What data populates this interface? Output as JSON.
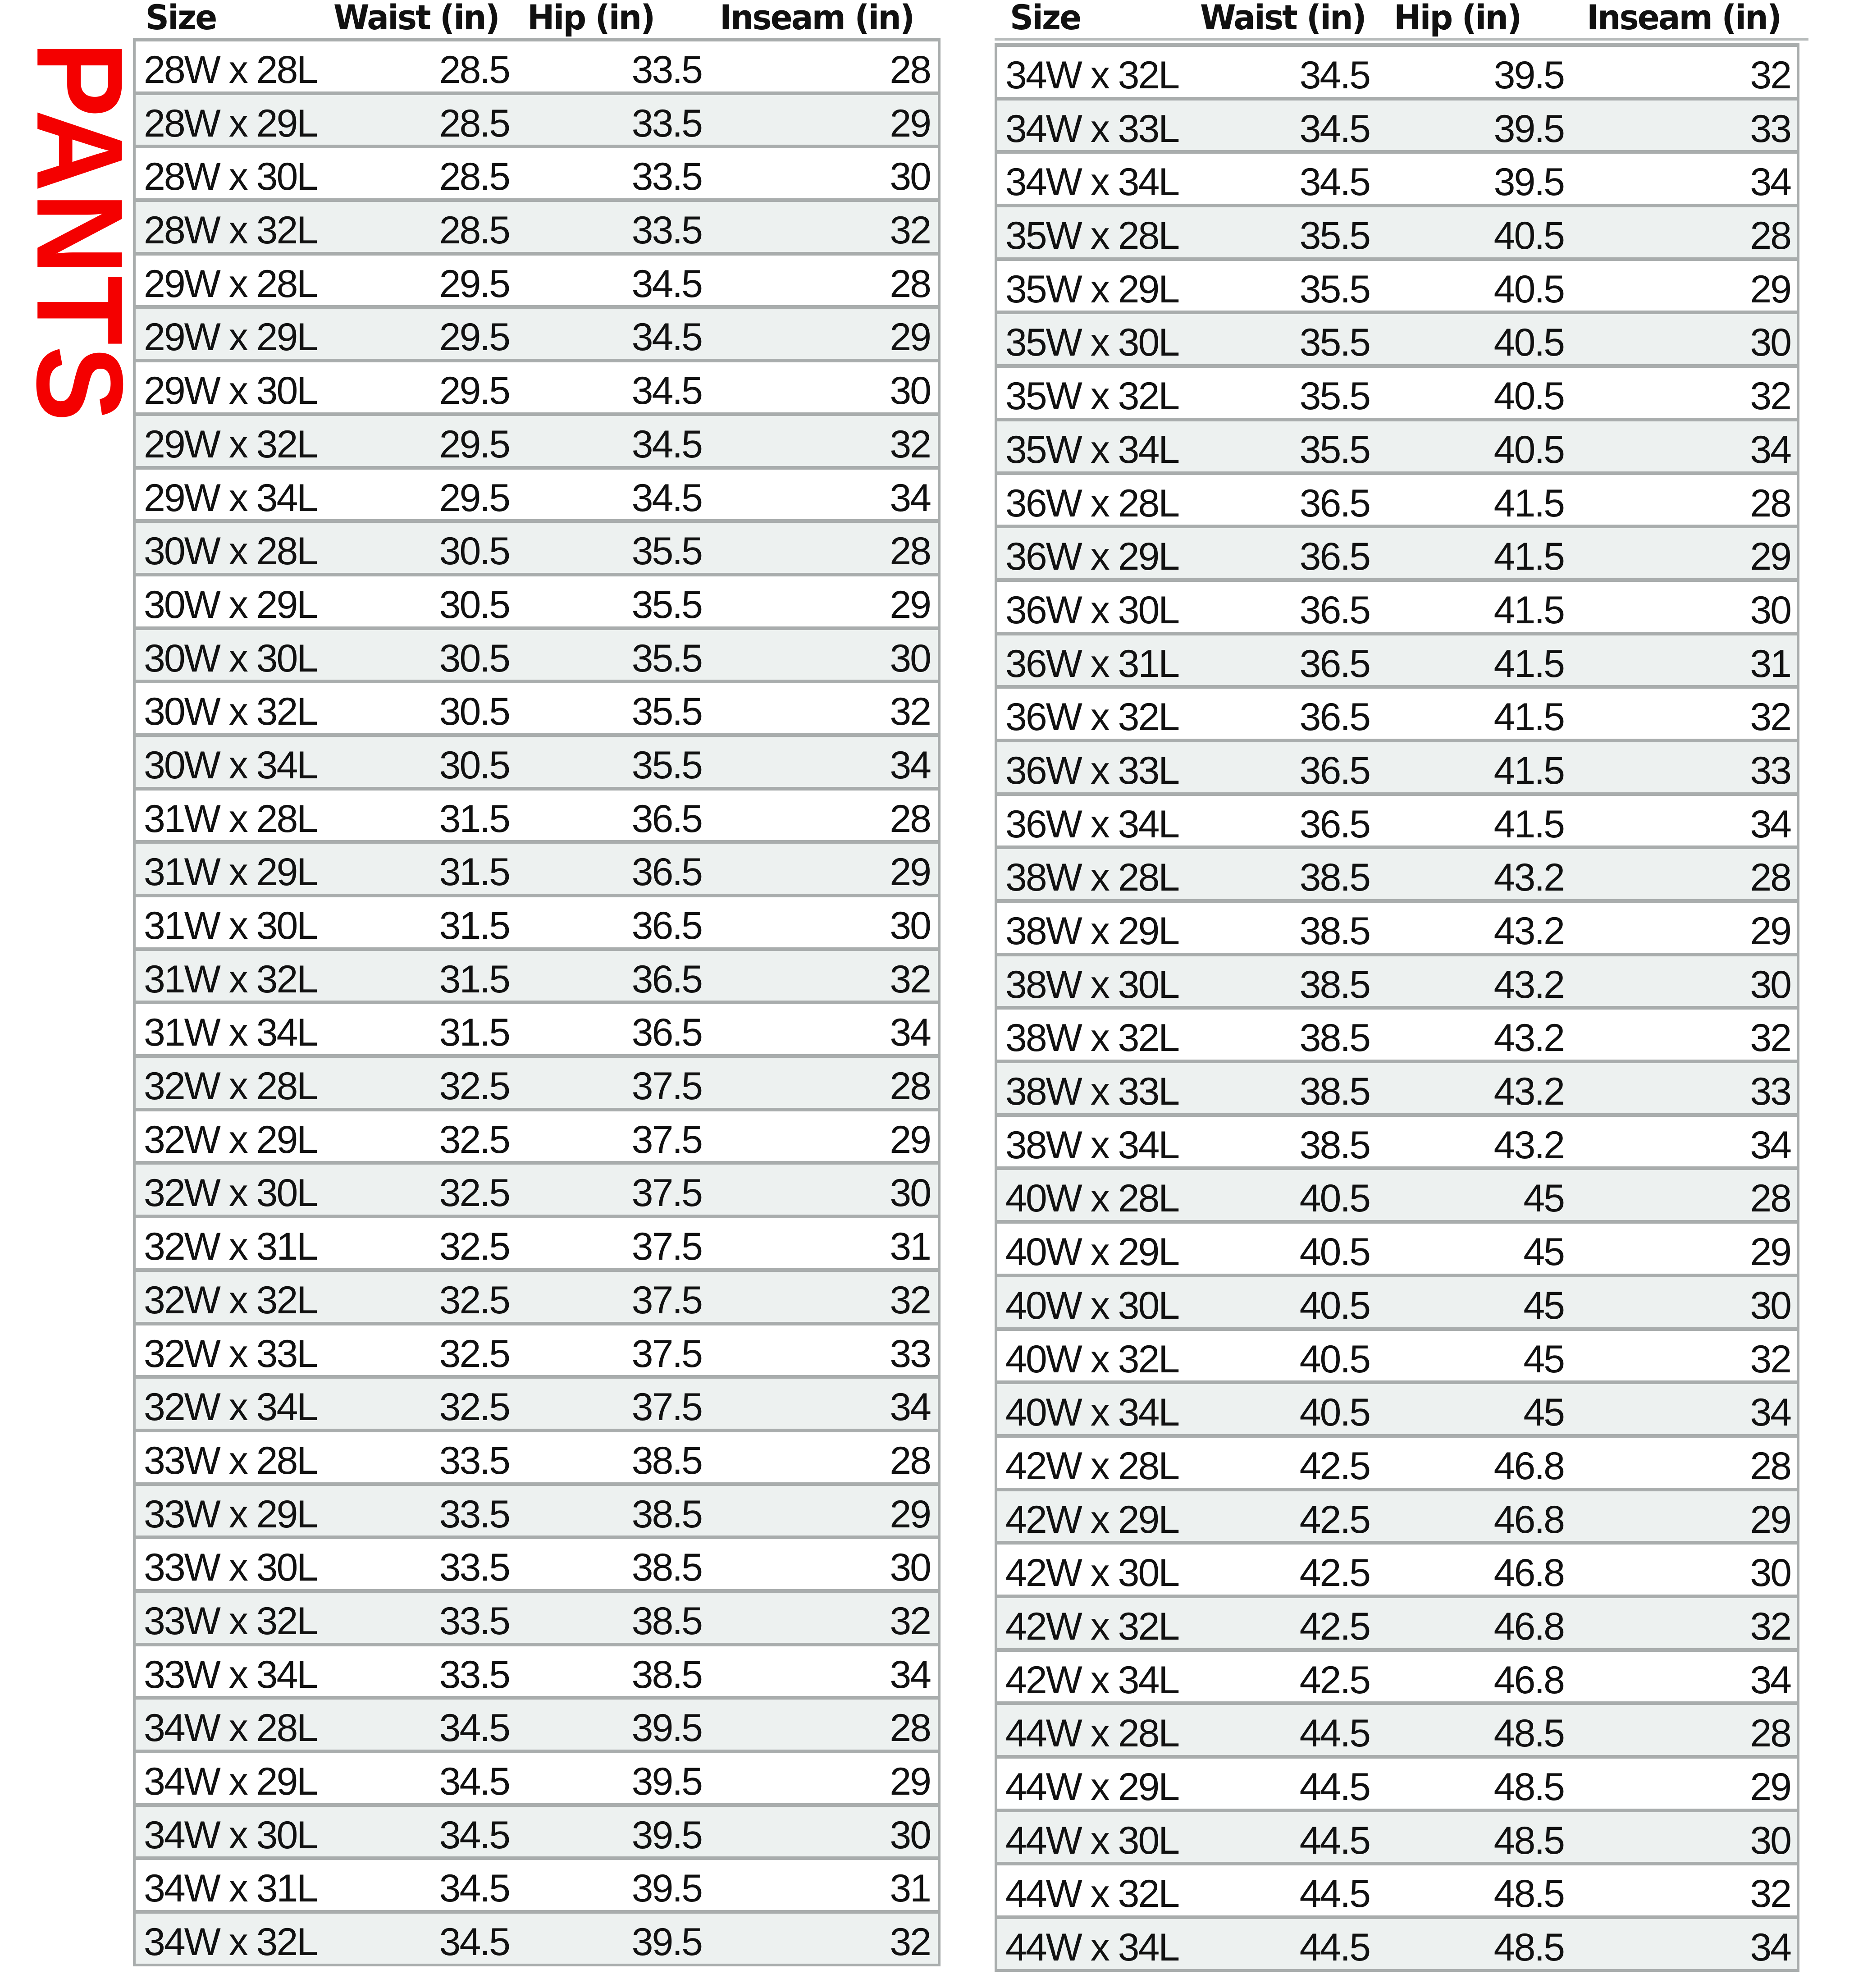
{
  "title": "PANTS",
  "colors": {
    "title": "#f40000",
    "row_alt": "#edf1f0",
    "border": "#a9adad"
  },
  "columns": [
    "Size",
    "Waist (in)",
    "Hip (in)",
    "Inseam (in)"
  ],
  "tables": [
    {
      "rows": [
        [
          "28W x 28L",
          "28.5",
          "33.5",
          "28"
        ],
        [
          "28W x 29L",
          "28.5",
          "33.5",
          "29"
        ],
        [
          "28W x 30L",
          "28.5",
          "33.5",
          "30"
        ],
        [
          "28W x 32L",
          "28.5",
          "33.5",
          "32"
        ],
        [
          "29W x 28L",
          "29.5",
          "34.5",
          "28"
        ],
        [
          "29W x 29L",
          "29.5",
          "34.5",
          "29"
        ],
        [
          "29W x 30L",
          "29.5",
          "34.5",
          "30"
        ],
        [
          "29W x 32L",
          "29.5",
          "34.5",
          "32"
        ],
        [
          "29W x 34L",
          "29.5",
          "34.5",
          "34"
        ],
        [
          "30W x 28L",
          "30.5",
          "35.5",
          "28"
        ],
        [
          "30W x 29L",
          "30.5",
          "35.5",
          "29"
        ],
        [
          "30W x 30L",
          "30.5",
          "35.5",
          "30"
        ],
        [
          "30W x 32L",
          "30.5",
          "35.5",
          "32"
        ],
        [
          "30W x 34L",
          "30.5",
          "35.5",
          "34"
        ],
        [
          "31W x 28L",
          "31.5",
          "36.5",
          "28"
        ],
        [
          "31W x 29L",
          "31.5",
          "36.5",
          "29"
        ],
        [
          "31W x 30L",
          "31.5",
          "36.5",
          "30"
        ],
        [
          "31W x 32L",
          "31.5",
          "36.5",
          "32"
        ],
        [
          "31W x 34L",
          "31.5",
          "36.5",
          "34"
        ],
        [
          "32W x 28L",
          "32.5",
          "37.5",
          "28"
        ],
        [
          "32W x 29L",
          "32.5",
          "37.5",
          "29"
        ],
        [
          "32W x 30L",
          "32.5",
          "37.5",
          "30"
        ],
        [
          "32W x 31L",
          "32.5",
          "37.5",
          "31"
        ],
        [
          "32W x 32L",
          "32.5",
          "37.5",
          "32"
        ],
        [
          "32W x 33L",
          "32.5",
          "37.5",
          "33"
        ],
        [
          "32W x 34L",
          "32.5",
          "37.5",
          "34"
        ],
        [
          "33W x 28L",
          "33.5",
          "38.5",
          "28"
        ],
        [
          "33W x 29L",
          "33.5",
          "38.5",
          "29"
        ],
        [
          "33W x 30L",
          "33.5",
          "38.5",
          "30"
        ],
        [
          "33W x 32L",
          "33.5",
          "38.5",
          "32"
        ],
        [
          "33W x 34L",
          "33.5",
          "38.5",
          "34"
        ],
        [
          "34W x 28L",
          "34.5",
          "39.5",
          "28"
        ],
        [
          "34W x 29L",
          "34.5",
          "39.5",
          "29"
        ],
        [
          "34W x 30L",
          "34.5",
          "39.5",
          "30"
        ],
        [
          "34W x 31L",
          "34.5",
          "39.5",
          "31"
        ],
        [
          "34W x 32L",
          "34.5",
          "39.5",
          "32"
        ]
      ]
    },
    {
      "rows": [
        [
          "34W x 32L",
          "34.5",
          "39.5",
          "32"
        ],
        [
          "34W x 33L",
          "34.5",
          "39.5",
          "33"
        ],
        [
          "34W x 34L",
          "34.5",
          "39.5",
          "34"
        ],
        [
          "35W x 28L",
          "35.5",
          "40.5",
          "28"
        ],
        [
          "35W x 29L",
          "35.5",
          "40.5",
          "29"
        ],
        [
          "35W x 30L",
          "35.5",
          "40.5",
          "30"
        ],
        [
          "35W x 32L",
          "35.5",
          "40.5",
          "32"
        ],
        [
          "35W x 34L",
          "35.5",
          "40.5",
          "34"
        ],
        [
          "36W x 28L",
          "36.5",
          "41.5",
          "28"
        ],
        [
          "36W x 29L",
          "36.5",
          "41.5",
          "29"
        ],
        [
          "36W x 30L",
          "36.5",
          "41.5",
          "30"
        ],
        [
          "36W x 31L",
          "36.5",
          "41.5",
          "31"
        ],
        [
          "36W x 32L",
          "36.5",
          "41.5",
          "32"
        ],
        [
          "36W x 33L",
          "36.5",
          "41.5",
          "33"
        ],
        [
          "36W x 34L",
          "36.5",
          "41.5",
          "34"
        ],
        [
          "38W x 28L",
          "38.5",
          "43.2",
          "28"
        ],
        [
          "38W x 29L",
          "38.5",
          "43.2",
          "29"
        ],
        [
          "38W x 30L",
          "38.5",
          "43.2",
          "30"
        ],
        [
          "38W x 32L",
          "38.5",
          "43.2",
          "32"
        ],
        [
          "38W x 33L",
          "38.5",
          "43.2",
          "33"
        ],
        [
          "38W x 34L",
          "38.5",
          "43.2",
          "34"
        ],
        [
          "40W x 28L",
          "40.5",
          "45",
          "28"
        ],
        [
          "40W x 29L",
          "40.5",
          "45",
          "29"
        ],
        [
          "40W x 30L",
          "40.5",
          "45",
          "30"
        ],
        [
          "40W x 32L",
          "40.5",
          "45",
          "32"
        ],
        [
          "40W x 34L",
          "40.5",
          "45",
          "34"
        ],
        [
          "42W x 28L",
          "42.5",
          "46.8",
          "28"
        ],
        [
          "42W x 29L",
          "42.5",
          "46.8",
          "29"
        ],
        [
          "42W x 30L",
          "42.5",
          "46.8",
          "30"
        ],
        [
          "42W x 32L",
          "42.5",
          "46.8",
          "32"
        ],
        [
          "42W x 34L",
          "42.5",
          "46.8",
          "34"
        ],
        [
          "44W x 28L",
          "44.5",
          "48.5",
          "28"
        ],
        [
          "44W x 29L",
          "44.5",
          "48.5",
          "29"
        ],
        [
          "44W x 30L",
          "44.5",
          "48.5",
          "30"
        ],
        [
          "44W x 32L",
          "44.5",
          "48.5",
          "32"
        ],
        [
          "44W x 34L",
          "44.5",
          "48.5",
          "34"
        ]
      ]
    }
  ]
}
